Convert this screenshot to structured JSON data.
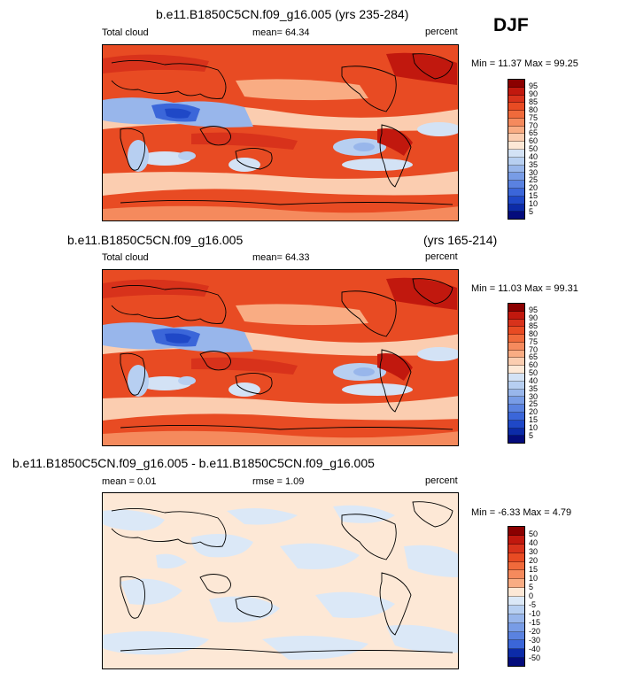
{
  "season": "DJF",
  "units": "percent",
  "panels": [
    {
      "title": "b.e11.B1850C5CN.f09_g16.005 (yrs 235-284)",
      "title_right": "",
      "variable": "Total cloud",
      "stat": "mean=  64.34",
      "minmax": "Min = 11.37 Max =  99.25",
      "levels": [
        "95",
        "90",
        "85",
        "80",
        "75",
        "70",
        "65",
        "60",
        "50",
        "40",
        "35",
        "30",
        "25",
        "20",
        "15",
        "10",
        "5"
      ],
      "colors": [
        "#8b0000",
        "#c1180e",
        "#d8321b",
        "#e84b23",
        "#f06a3b",
        "#f58a5d",
        "#f9ac83",
        "#fbcdb0",
        "#fde8d6",
        "#d3e2f5",
        "#b7cff1",
        "#98b6eb",
        "#789ce6",
        "#5a82e0",
        "#3b66d9",
        "#1f48c7",
        "#0c2ba8",
        "#040c7c"
      ]
    },
    {
      "title": "b.e11.B1850C5CN.f09_g16.005",
      "title_right": "(yrs 165-214)",
      "variable": "Total cloud",
      "stat": "mean=  64.33",
      "minmax": "Min = 11.03 Max =  99.31",
      "levels": [
        "95",
        "90",
        "85",
        "80",
        "75",
        "70",
        "65",
        "60",
        "50",
        "40",
        "35",
        "30",
        "25",
        "20",
        "15",
        "10",
        "5"
      ],
      "colors": [
        "#8b0000",
        "#c1180e",
        "#d8321b",
        "#e84b23",
        "#f06a3b",
        "#f58a5d",
        "#f9ac83",
        "#fbcdb0",
        "#fde8d6",
        "#d3e2f5",
        "#b7cff1",
        "#98b6eb",
        "#789ce6",
        "#5a82e0",
        "#3b66d9",
        "#1f48c7",
        "#0c2ba8",
        "#040c7c"
      ]
    },
    {
      "title": "b.e11.B1850C5CN.f09_g16.005 - b.e11.B1850C5CN.f09_g16.005",
      "title_right": "",
      "variable": "mean =  0.01",
      "stat": "rmse =   1.09",
      "minmax": "Min = -6.33 Max =   4.79",
      "levels": [
        "50",
        "40",
        "30",
        "20",
        "15",
        "10",
        "5",
        "0",
        "-5",
        "-10",
        "-15",
        "-20",
        "-30",
        "-40",
        "-50"
      ],
      "colors": [
        "#8b0000",
        "#c1180e",
        "#d8321b",
        "#e84b23",
        "#f06a3b",
        "#f58a5d",
        "#f9ac83",
        "#fde8d6",
        "#dbe8f7",
        "#b7cff1",
        "#98b6eb",
        "#789ce6",
        "#5a82e0",
        "#3b66d9",
        "#0c2ba8",
        "#040c7c"
      ]
    }
  ]
}
